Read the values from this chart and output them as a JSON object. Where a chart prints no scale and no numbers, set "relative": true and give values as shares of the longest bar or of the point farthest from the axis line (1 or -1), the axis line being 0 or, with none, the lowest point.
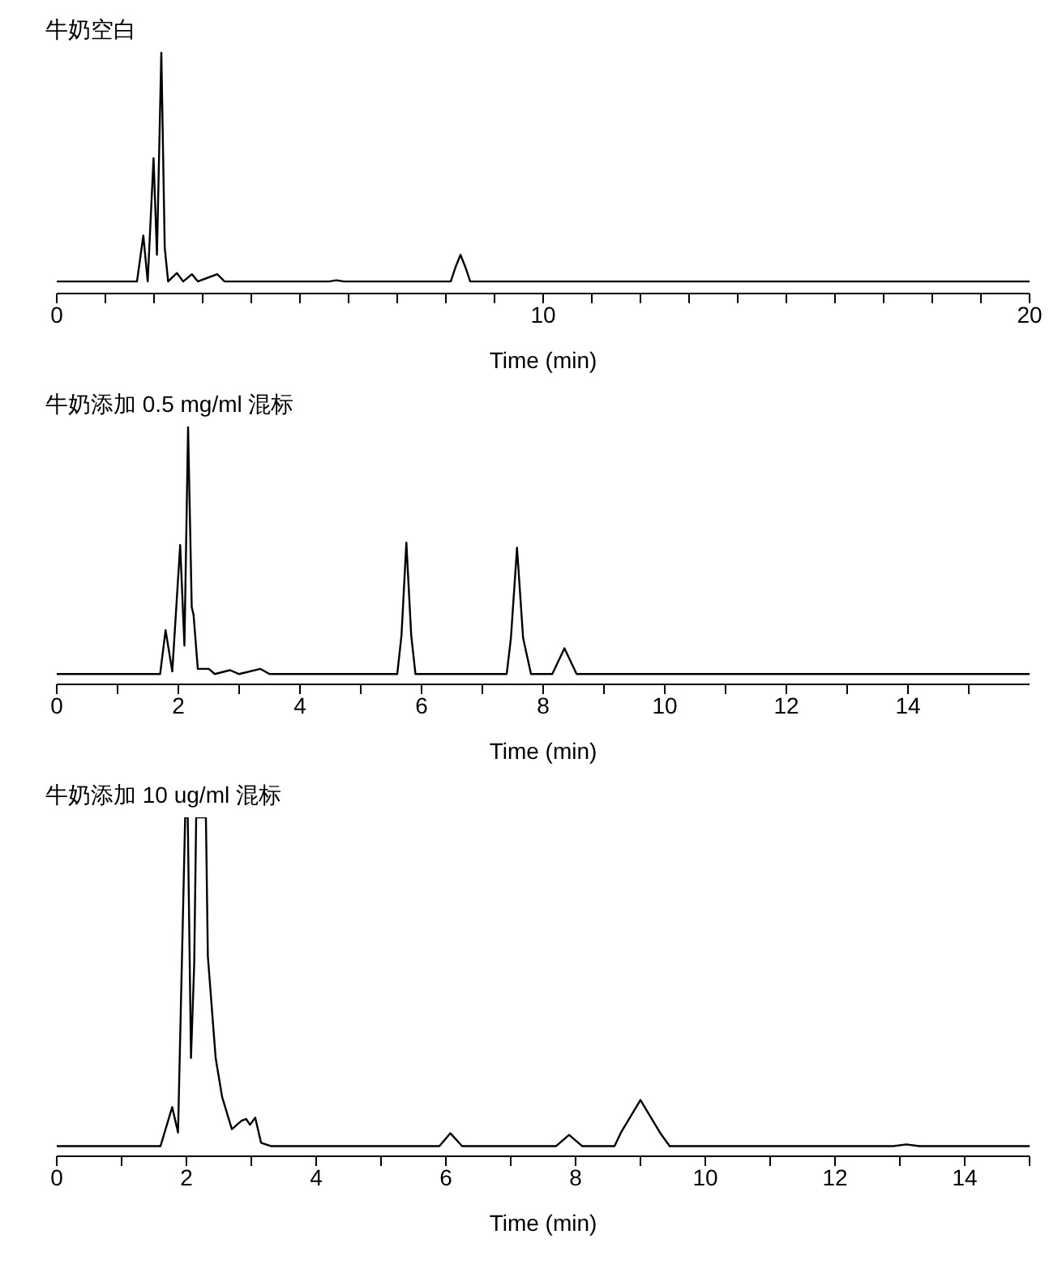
{
  "chart_data": [
    {
      "type": "line",
      "title": "牛奶空白",
      "xlabel": "Time (min)",
      "relative": true,
      "color": "#000000",
      "xlim": [
        0,
        20
      ],
      "xticks": [
        0,
        {
          "value": 1,
          "label": null
        },
        {
          "value": 2,
          "label": null
        },
        {
          "value": 3,
          "label": null
        },
        {
          "value": 4,
          "label": null
        },
        {
          "value": 5,
          "label": null
        },
        {
          "value": 6,
          "label": null
        },
        {
          "value": 7,
          "label": null
        },
        {
          "value": 8,
          "label": null
        },
        {
          "value": 9,
          "label": null
        },
        10,
        {
          "value": 11,
          "label": null
        },
        {
          "value": 12,
          "label": null
        },
        {
          "value": 13,
          "label": null
        },
        {
          "value": 14,
          "label": null
        },
        {
          "value": 15,
          "label": null
        },
        {
          "value": 16,
          "label": null
        },
        {
          "value": 17,
          "label": null
        },
        {
          "value": 18,
          "label": null
        },
        {
          "value": 19,
          "label": null
        },
        20
      ],
      "x": [
        0,
        1.65,
        1.78,
        1.87,
        1.99,
        2.06,
        2.15,
        2.22,
        2.29,
        2.47,
        2.6,
        2.78,
        2.9,
        3.3,
        3.45,
        5.6,
        5.75,
        5.9,
        8.1,
        8.2,
        8.3,
        8.4,
        8.5,
        20
      ],
      "values": [
        0.05,
        0.05,
        0.24,
        0.05,
        0.56,
        0.16,
        1.0,
        0.19,
        0.05,
        0.085,
        0.05,
        0.08,
        0.05,
        0.08,
        0.05,
        0.05,
        0.055,
        0.05,
        0.05,
        0.11,
        0.16,
        0.11,
        0.05,
        0.05
      ]
    },
    {
      "type": "line",
      "title": "牛奶添加 0.5 mg/ml 混标",
      "xlabel": "Time (min)",
      "relative": true,
      "color": "#000000",
      "xlim": [
        0,
        16
      ],
      "xticks": [
        0,
        {
          "value": 1,
          "label": null
        },
        2,
        {
          "value": 3,
          "label": null
        },
        4,
        {
          "value": 5,
          "label": null
        },
        6,
        {
          "value": 7,
          "label": null
        },
        8,
        {
          "value": 9,
          "label": null
        },
        10,
        {
          "value": 11,
          "label": null
        },
        12,
        {
          "value": 13,
          "label": null
        },
        14,
        {
          "value": 15,
          "label": null
        }
      ],
      "x": [
        0,
        1.7,
        1.79,
        1.9,
        2.03,
        2.1,
        2.16,
        2.22,
        2.25,
        2.32,
        2.5,
        2.6,
        2.85,
        3.0,
        3.35,
        3.5,
        5.6,
        5.67,
        5.75,
        5.83,
        5.9,
        7.4,
        7.47,
        7.57,
        7.67,
        7.8,
        8.15,
        8.35,
        8.55,
        16
      ],
      "values": [
        0.04,
        0.04,
        0.21,
        0.05,
        0.54,
        0.15,
        1.0,
        0.3,
        0.27,
        0.06,
        0.06,
        0.04,
        0.055,
        0.04,
        0.06,
        0.04,
        0.04,
        0.19,
        0.55,
        0.19,
        0.04,
        0.04,
        0.18,
        0.53,
        0.18,
        0.04,
        0.04,
        0.14,
        0.04,
        0.04
      ]
    },
    {
      "type": "line",
      "title": "牛奶添加 10 ug/ml 混标",
      "xlabel": "Time (min)",
      "relative": true,
      "color": "#000000",
      "xlim": [
        0,
        15
      ],
      "xticks": [
        0,
        {
          "value": 1,
          "label": null
        },
        2,
        {
          "value": 3,
          "label": null
        },
        4,
        {
          "value": 5,
          "label": null
        },
        6,
        {
          "value": 7,
          "label": null
        },
        8,
        {
          "value": 9,
          "label": null
        },
        10,
        {
          "value": 11,
          "label": null
        },
        12,
        {
          "value": 13,
          "label": null
        },
        14,
        {
          "value": 15,
          "label": null
        }
      ],
      "x": [
        0,
        1.6,
        1.78,
        1.87,
        1.98,
        2.02,
        2.07,
        2.12,
        2.15,
        2.3,
        2.33,
        2.45,
        2.55,
        2.7,
        2.85,
        2.92,
        2.98,
        3.06,
        3.15,
        3.3,
        5.9,
        6.07,
        6.25,
        7.7,
        7.9,
        8.1,
        8.6,
        8.7,
        9.0,
        9.3,
        9.45,
        12.9,
        13.1,
        13.3,
        15
      ],
      "values": [
        0.03,
        0.03,
        0.145,
        0.07,
        1.0,
        1.0,
        0.29,
        0.57,
        1.0,
        1.0,
        0.59,
        0.29,
        0.175,
        0.08,
        0.105,
        0.11,
        0.093,
        0.114,
        0.04,
        0.03,
        0.03,
        0.068,
        0.03,
        0.03,
        0.063,
        0.03,
        0.03,
        0.07,
        0.166,
        0.07,
        0.03,
        0.03,
        0.035,
        0.03,
        0.03
      ]
    }
  ]
}
